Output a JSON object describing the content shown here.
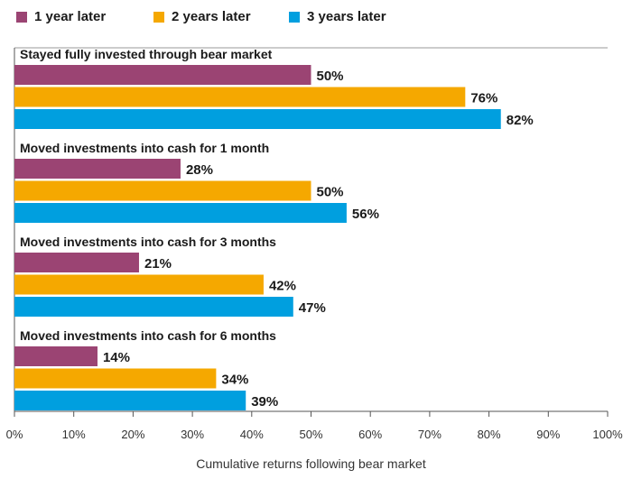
{
  "chart_data": {
    "type": "bar",
    "orientation": "horizontal",
    "xlabel": "Cumulative returns following bear market",
    "xlim": [
      0,
      100
    ],
    "x_ticks": [
      "0%",
      "10%",
      "20%",
      "30%",
      "40%",
      "50%",
      "60%",
      "70%",
      "80%",
      "90%",
      "100%"
    ],
    "value_suffix": "%",
    "legend_position": "top-left",
    "categories": [
      "Stayed fully invested through bear market",
      "Moved investments into cash for 1 month",
      "Moved investments into cash for 3 months",
      "Moved investments into cash for 6 months"
    ],
    "series": [
      {
        "name": "1 year later",
        "color": "#9b4473",
        "values": [
          50,
          28,
          21,
          14
        ]
      },
      {
        "name": "2 years later",
        "color": "#f5a800",
        "values": [
          76,
          50,
          42,
          34
        ]
      },
      {
        "name": "3 years later",
        "color": "#009fdf",
        "values": [
          82,
          56,
          47,
          39
        ]
      }
    ]
  }
}
